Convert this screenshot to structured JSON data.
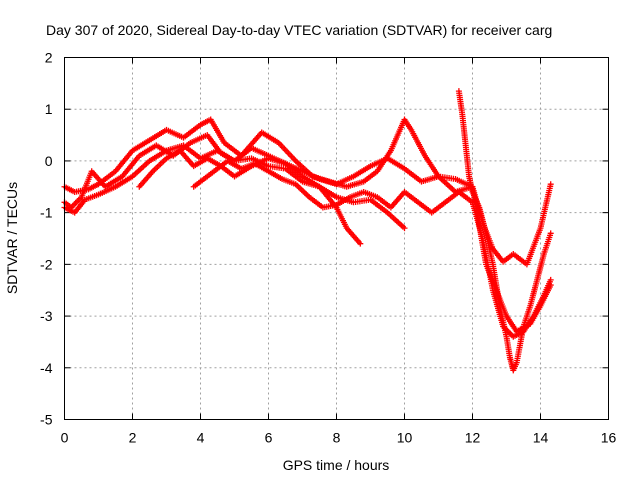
{
  "chart_data": {
    "type": "scatter",
    "title": "Day 307 of 2020, Sidereal Day-to-day VTEC variation (SDTVAR) for receiver carg",
    "xlabel": "GPS time / hours",
    "ylabel": "SDTVAR / TECUs",
    "xlim": [
      0,
      16
    ],
    "ylim": [
      -5,
      2
    ],
    "xticks": [
      0,
      2,
      4,
      6,
      8,
      10,
      12,
      14,
      16
    ],
    "yticks": [
      -5,
      -4,
      -3,
      -2,
      -1,
      0,
      1,
      2
    ],
    "xtick_labels": [
      "0",
      "2",
      "4",
      "6",
      "8",
      "10",
      "12",
      "14",
      "16"
    ],
    "ytick_labels": [
      "-5",
      "-4",
      "-3",
      "-2",
      "-1",
      "0",
      "1",
      "2"
    ],
    "grid": true,
    "marker": "+",
    "color": "#ff0000",
    "series": [
      {
        "name": "trace-1",
        "x": [
          0.0,
          0.3,
          0.7,
          1.0,
          1.5,
          2.0,
          2.5,
          3.0,
          3.5,
          4.0,
          4.3,
          4.7,
          5.2,
          5.8,
          6.3,
          6.8,
          7.3,
          7.8,
          8.3,
          8.8,
          9.2,
          9.6,
          10.0,
          10.2,
          10.6,
          11.0,
          11.5,
          12.0,
          12.3,
          12.6,
          12.9,
          13.2,
          13.6,
          14.0,
          14.3
        ],
        "y": [
          -0.5,
          -0.6,
          -0.55,
          -0.45,
          -0.2,
          0.2,
          0.4,
          0.6,
          0.45,
          0.7,
          0.8,
          0.35,
          0.1,
          0.55,
          0.35,
          0.0,
          -0.3,
          -0.4,
          -0.5,
          -0.4,
          -0.2,
          0.2,
          0.8,
          0.6,
          0.1,
          -0.3,
          -0.6,
          -0.5,
          -1.2,
          -1.7,
          -1.95,
          -1.8,
          -2.0,
          -1.3,
          -0.45
        ]
      },
      {
        "name": "trace-2",
        "x": [
          0.0,
          0.2,
          0.5,
          0.8,
          1.2,
          1.7,
          2.2,
          2.7,
          3.2,
          3.7,
          4.2,
          4.6,
          5.0,
          5.5,
          6.0,
          6.5,
          7.0,
          7.5,
          8.0,
          8.5,
          9.0,
          9.5,
          10.0,
          10.5,
          11.0,
          11.5,
          12.0,
          12.4,
          12.7,
          13.0,
          13.3,
          13.7,
          14.0,
          14.3
        ],
        "y": [
          -0.8,
          -0.9,
          -0.7,
          -0.2,
          -0.5,
          -0.3,
          0.1,
          0.3,
          0.1,
          0.35,
          0.5,
          0.15,
          0.0,
          0.25,
          0.1,
          -0.05,
          -0.2,
          -0.35,
          -0.45,
          -0.3,
          -0.1,
          0.05,
          -0.15,
          -0.4,
          -0.3,
          -0.35,
          -0.5,
          -2.0,
          -2.5,
          -3.0,
          -3.3,
          -3.15,
          -2.8,
          -2.4
        ]
      },
      {
        "name": "trace-3",
        "x": [
          0.0,
          0.3,
          0.6,
          1.0,
          1.5,
          2.0,
          2.5,
          3.0,
          3.5,
          4.0,
          4.5,
          5.0,
          5.5,
          6.0,
          6.5,
          7.0,
          7.5,
          8.0,
          8.3,
          8.7
        ],
        "y": [
          -0.9,
          -1.0,
          -0.75,
          -0.65,
          -0.5,
          -0.3,
          0.0,
          0.2,
          0.3,
          0.05,
          0.2,
          0.0,
          0.05,
          -0.1,
          -0.15,
          -0.4,
          -0.5,
          -0.9,
          -1.3,
          -1.6
        ]
      },
      {
        "name": "trace-4",
        "x": [
          2.2,
          2.6,
          3.0,
          3.4,
          3.8,
          4.2,
          4.6,
          5.0,
          5.5,
          6.0,
          6.5,
          7.0,
          7.5,
          8.0,
          8.5,
          9.0,
          9.5,
          10.0
        ],
        "y": [
          -0.5,
          -0.2,
          0.05,
          0.2,
          -0.1,
          0.05,
          -0.1,
          -0.3,
          -0.1,
          0.05,
          -0.05,
          -0.3,
          -0.5,
          -0.7,
          -0.8,
          -0.75,
          -1.0,
          -1.3
        ]
      },
      {
        "name": "trace-5",
        "x": [
          3.8,
          4.1,
          4.4,
          4.8,
          5.2,
          5.6,
          6.0,
          6.4,
          6.8,
          7.2,
          7.6,
          8.0,
          8.4,
          8.8,
          9.2,
          9.6,
          10.0,
          10.4,
          10.8,
          11.2,
          11.6,
          12.0,
          12.3,
          12.6,
          12.9,
          13.2,
          13.5,
          13.8,
          14.1,
          14.3
        ],
        "y": [
          -0.5,
          -0.35,
          -0.2,
          0.0,
          -0.15,
          -0.05,
          -0.2,
          -0.35,
          -0.45,
          -0.7,
          -0.9,
          -0.85,
          -0.7,
          -0.6,
          -0.7,
          -0.9,
          -0.6,
          -0.8,
          -1.0,
          -0.8,
          -0.6,
          -0.8,
          -1.5,
          -2.5,
          -3.2,
          -3.4,
          -3.3,
          -3.0,
          -2.6,
          -2.3
        ]
      },
      {
        "name": "trace-6",
        "x": [
          11.6,
          11.7,
          11.8,
          11.9,
          12.0,
          12.2,
          12.4,
          12.6,
          12.8,
          13.0,
          13.1,
          13.2,
          13.3,
          13.5,
          13.7,
          13.9,
          14.1,
          14.3
        ],
        "y": [
          1.35,
          0.9,
          0.3,
          -0.3,
          -0.6,
          -0.9,
          -1.4,
          -2.0,
          -2.8,
          -3.4,
          -3.8,
          -4.05,
          -3.9,
          -3.2,
          -2.8,
          -2.3,
          -1.8,
          -1.4
        ]
      }
    ]
  }
}
